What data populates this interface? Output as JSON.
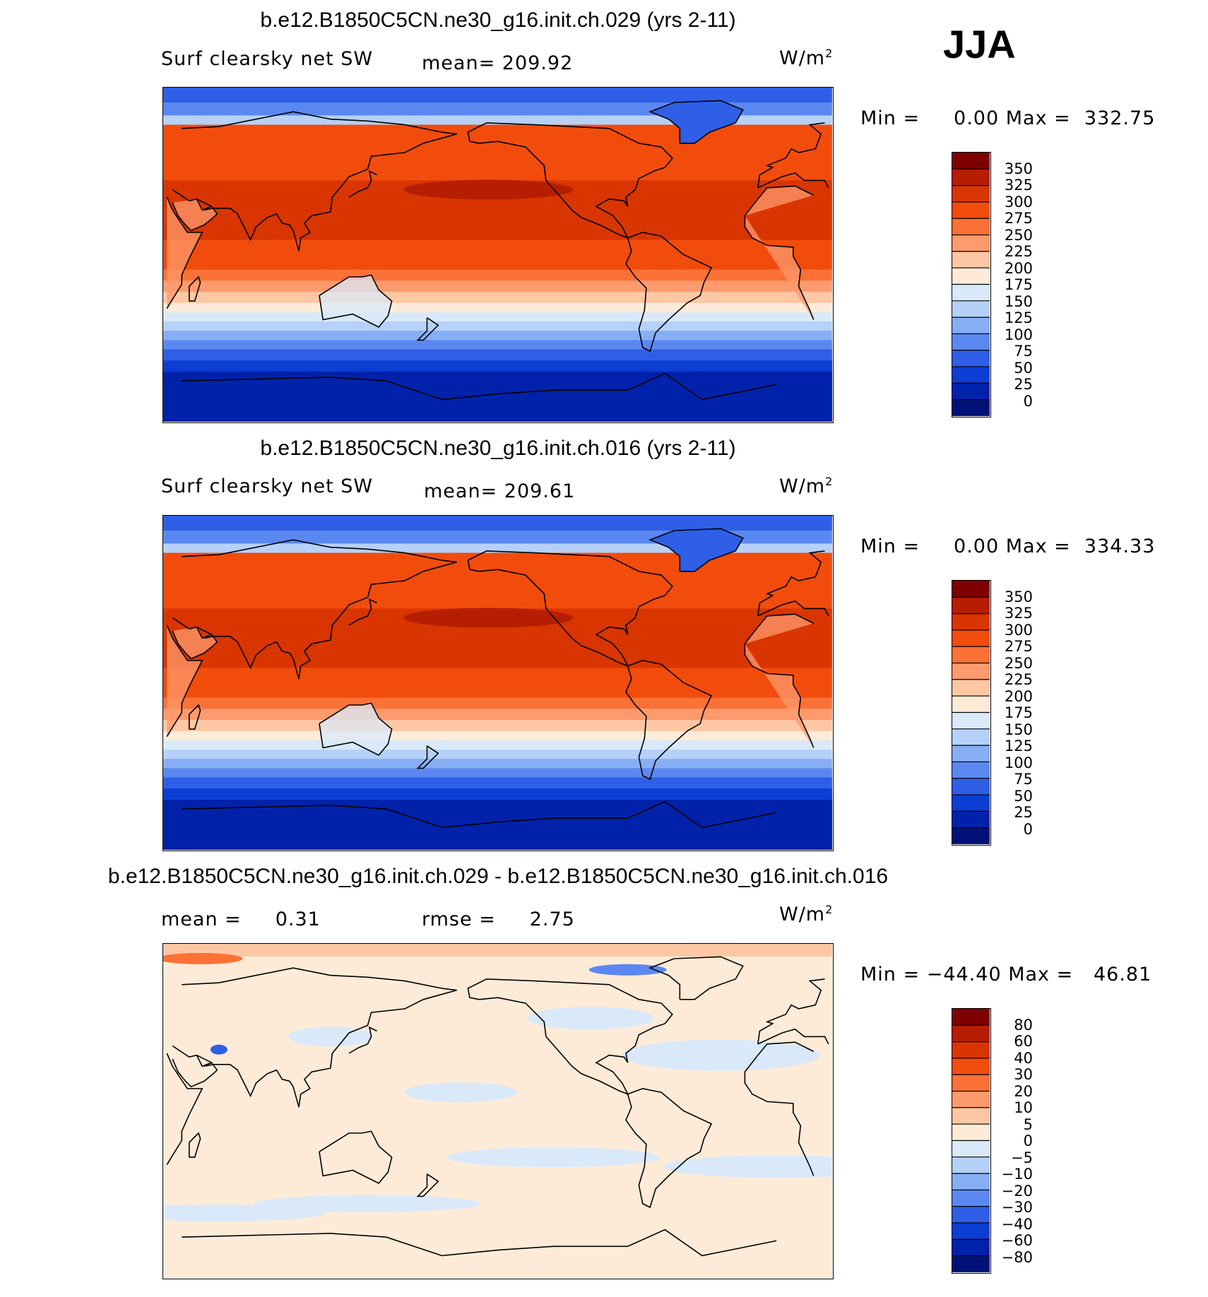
{
  "season": "JJA",
  "panels": [
    {
      "title": "b.e12.B1850C5CN.ne30_g16.init.ch.029 (yrs 2-11)",
      "left_label": "Surf clearsky net SW",
      "center_label": "mean= 209.92",
      "units": "W/m",
      "units_sup": "2",
      "minmax": "Min =     0.00 Max =  332.75",
      "colorbar_levels": [
        "350",
        "325",
        "300",
        "275",
        "250",
        "225",
        "200",
        "175",
        "150",
        "125",
        "100",
        "75",
        "50",
        "25",
        "0"
      ],
      "colorbar_colors": [
        "#7f0000",
        "#b51e00",
        "#d93500",
        "#f24c0d",
        "#fb7136",
        "#fd9a6e",
        "#fdc7a4",
        "#fdebd8",
        "#d9e9fa",
        "#b5d1f7",
        "#87aef4",
        "#5b88f0",
        "#2e5fe6",
        "#0c3ed4",
        "#0022aa",
        "#001278"
      ]
    },
    {
      "title": "b.e12.B1850C5CN.ne30_g16.init.ch.016 (yrs 2-11)",
      "left_label": "Surf clearsky net SW",
      "center_label": "mean= 209.61",
      "units": "W/m",
      "units_sup": "2",
      "minmax": "Min =     0.00 Max =  334.33",
      "colorbar_levels": [
        "350",
        "325",
        "300",
        "275",
        "250",
        "225",
        "200",
        "175",
        "150",
        "125",
        "100",
        "75",
        "50",
        "25",
        "0"
      ],
      "colorbar_colors": [
        "#7f0000",
        "#b51e00",
        "#d93500",
        "#f24c0d",
        "#fb7136",
        "#fd9a6e",
        "#fdc7a4",
        "#fdebd8",
        "#d9e9fa",
        "#b5d1f7",
        "#87aef4",
        "#5b88f0",
        "#2e5fe6",
        "#0c3ed4",
        "#0022aa",
        "#001278"
      ]
    },
    {
      "title": "b.e12.B1850C5CN.ne30_g16.init.ch.029 - b.e12.B1850C5CN.ne30_g16.init.ch.016",
      "left_label": "mean =     0.31",
      "center_label": "rmse =     2.75",
      "units": "W/m",
      "units_sup": "2",
      "minmax": "Min = −44.40 Max =   46.81",
      "colorbar_levels": [
        "80",
        "60",
        "40",
        "30",
        "20",
        "10",
        "5",
        "0",
        "−5",
        "−10",
        "−20",
        "−30",
        "−40",
        "−60",
        "−80"
      ],
      "colorbar_colors": [
        "#7f0000",
        "#b51e00",
        "#d93500",
        "#f24c0d",
        "#fb7136",
        "#fd9a6e",
        "#fdc7a4",
        "#fdebd8",
        "#d9e9fa",
        "#b5d1f7",
        "#87aef4",
        "#5b88f0",
        "#2e5fe6",
        "#0c3ed4",
        "#0022aa",
        "#001278"
      ]
    }
  ]
}
